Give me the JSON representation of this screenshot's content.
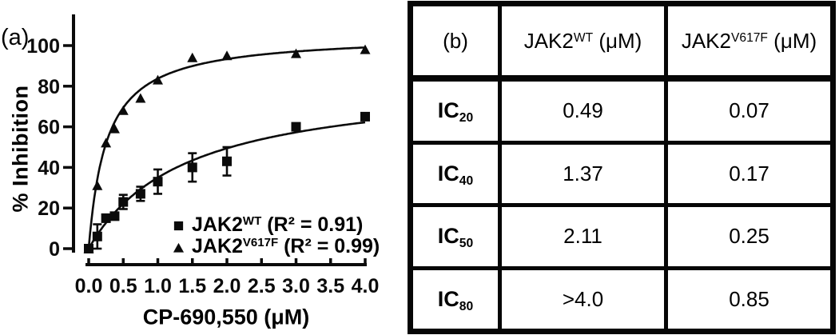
{
  "figure": {
    "panel_a_label": "(a)"
  },
  "chart_data": {
    "type": "scatter",
    "title": "",
    "xlabel": "CP-690,550 (μM)",
    "ylabel": "% Inhibition",
    "xlim": [
      0,
      4
    ],
    "ylim": [
      0,
      100
    ],
    "grid": false,
    "legend_position": "inside lower right",
    "x_ticks": [
      0.0,
      0.5,
      1.0,
      1.5,
      2.0,
      2.5,
      3.0,
      3.5,
      4.0
    ],
    "x_tick_labels": [
      "0.0",
      "0.5",
      "1.0",
      "1.5",
      "2.0",
      "2.5",
      "3.0",
      "3.5",
      "4.0"
    ],
    "y_ticks": [
      0,
      20,
      40,
      60,
      80,
      100
    ],
    "y_tick_labels": [
      "0",
      "20",
      "40",
      "60",
      "80",
      "100"
    ],
    "series": [
      {
        "id": "jak2-wt",
        "name_base": "JAK2",
        "name_sup": "WT",
        "r_squared": "R² = 0.91",
        "marker": "square",
        "x": [
          0,
          0.125,
          0.25,
          0.375,
          0.5,
          0.75,
          1.0,
          1.5,
          2.0,
          3.0,
          4.0
        ],
        "y": [
          0,
          6,
          15,
          16,
          23,
          27,
          33,
          40,
          43,
          60,
          65
        ],
        "yerr": [
          0,
          6,
          0,
          0,
          3.5,
          3.5,
          6,
          7,
          7,
          0,
          0
        ],
        "fit": {
          "model": "hyperbolic",
          "ymax": 84,
          "k": 1.4
        }
      },
      {
        "id": "jak2-v617f",
        "name_base": "JAK2",
        "name_sup": "V617F",
        "r_squared": "R² = 0.99",
        "marker": "triangle",
        "x": [
          0,
          0.125,
          0.25,
          0.375,
          0.5,
          0.75,
          1.0,
          1.5,
          2.0,
          3.0,
          4.0
        ],
        "y": [
          0,
          31,
          52,
          59,
          68,
          74,
          83,
          94,
          95,
          96,
          98
        ],
        "yerr": [
          0,
          0,
          0,
          0,
          0,
          0,
          0,
          0,
          0,
          0,
          0
        ],
        "fit": {
          "model": "hyperbolic",
          "ymax": 105.5,
          "k": 0.26
        }
      }
    ]
  },
  "legend": [
    {
      "marker": "square",
      "base": "JAK2",
      "sup": "WT",
      "after": " (R² = 0.91)"
    },
    {
      "marker": "triangle",
      "base": "JAK2",
      "sup": "V617F",
      "after": " (R² = 0.99)"
    }
  ],
  "table": {
    "header": {
      "corner": "(b)",
      "col_wt": {
        "base": "JAK2",
        "sup": "WT",
        "after": " (μM)"
      },
      "col_v617f": {
        "base": "JAK2",
        "sup": "V617F",
        "after": " (μM)"
      }
    },
    "rows": [
      {
        "label": {
          "base": "IC",
          "sub": "20"
        },
        "wt": "0.49",
        "v617f": "0.07"
      },
      {
        "label": {
          "base": "IC",
          "sub": "40"
        },
        "wt": "1.37",
        "v617f": "0.17"
      },
      {
        "label": {
          "base": "IC",
          "sub": "50"
        },
        "wt": "2.11",
        "v617f": "0.25"
      },
      {
        "label": {
          "base": "IC",
          "sub": "80"
        },
        "wt": ">4.0",
        "v617f": "0.85"
      }
    ]
  },
  "colors": {
    "ink": "#0b0b0b",
    "background": "#ffffff",
    "table_border": "#060606"
  }
}
